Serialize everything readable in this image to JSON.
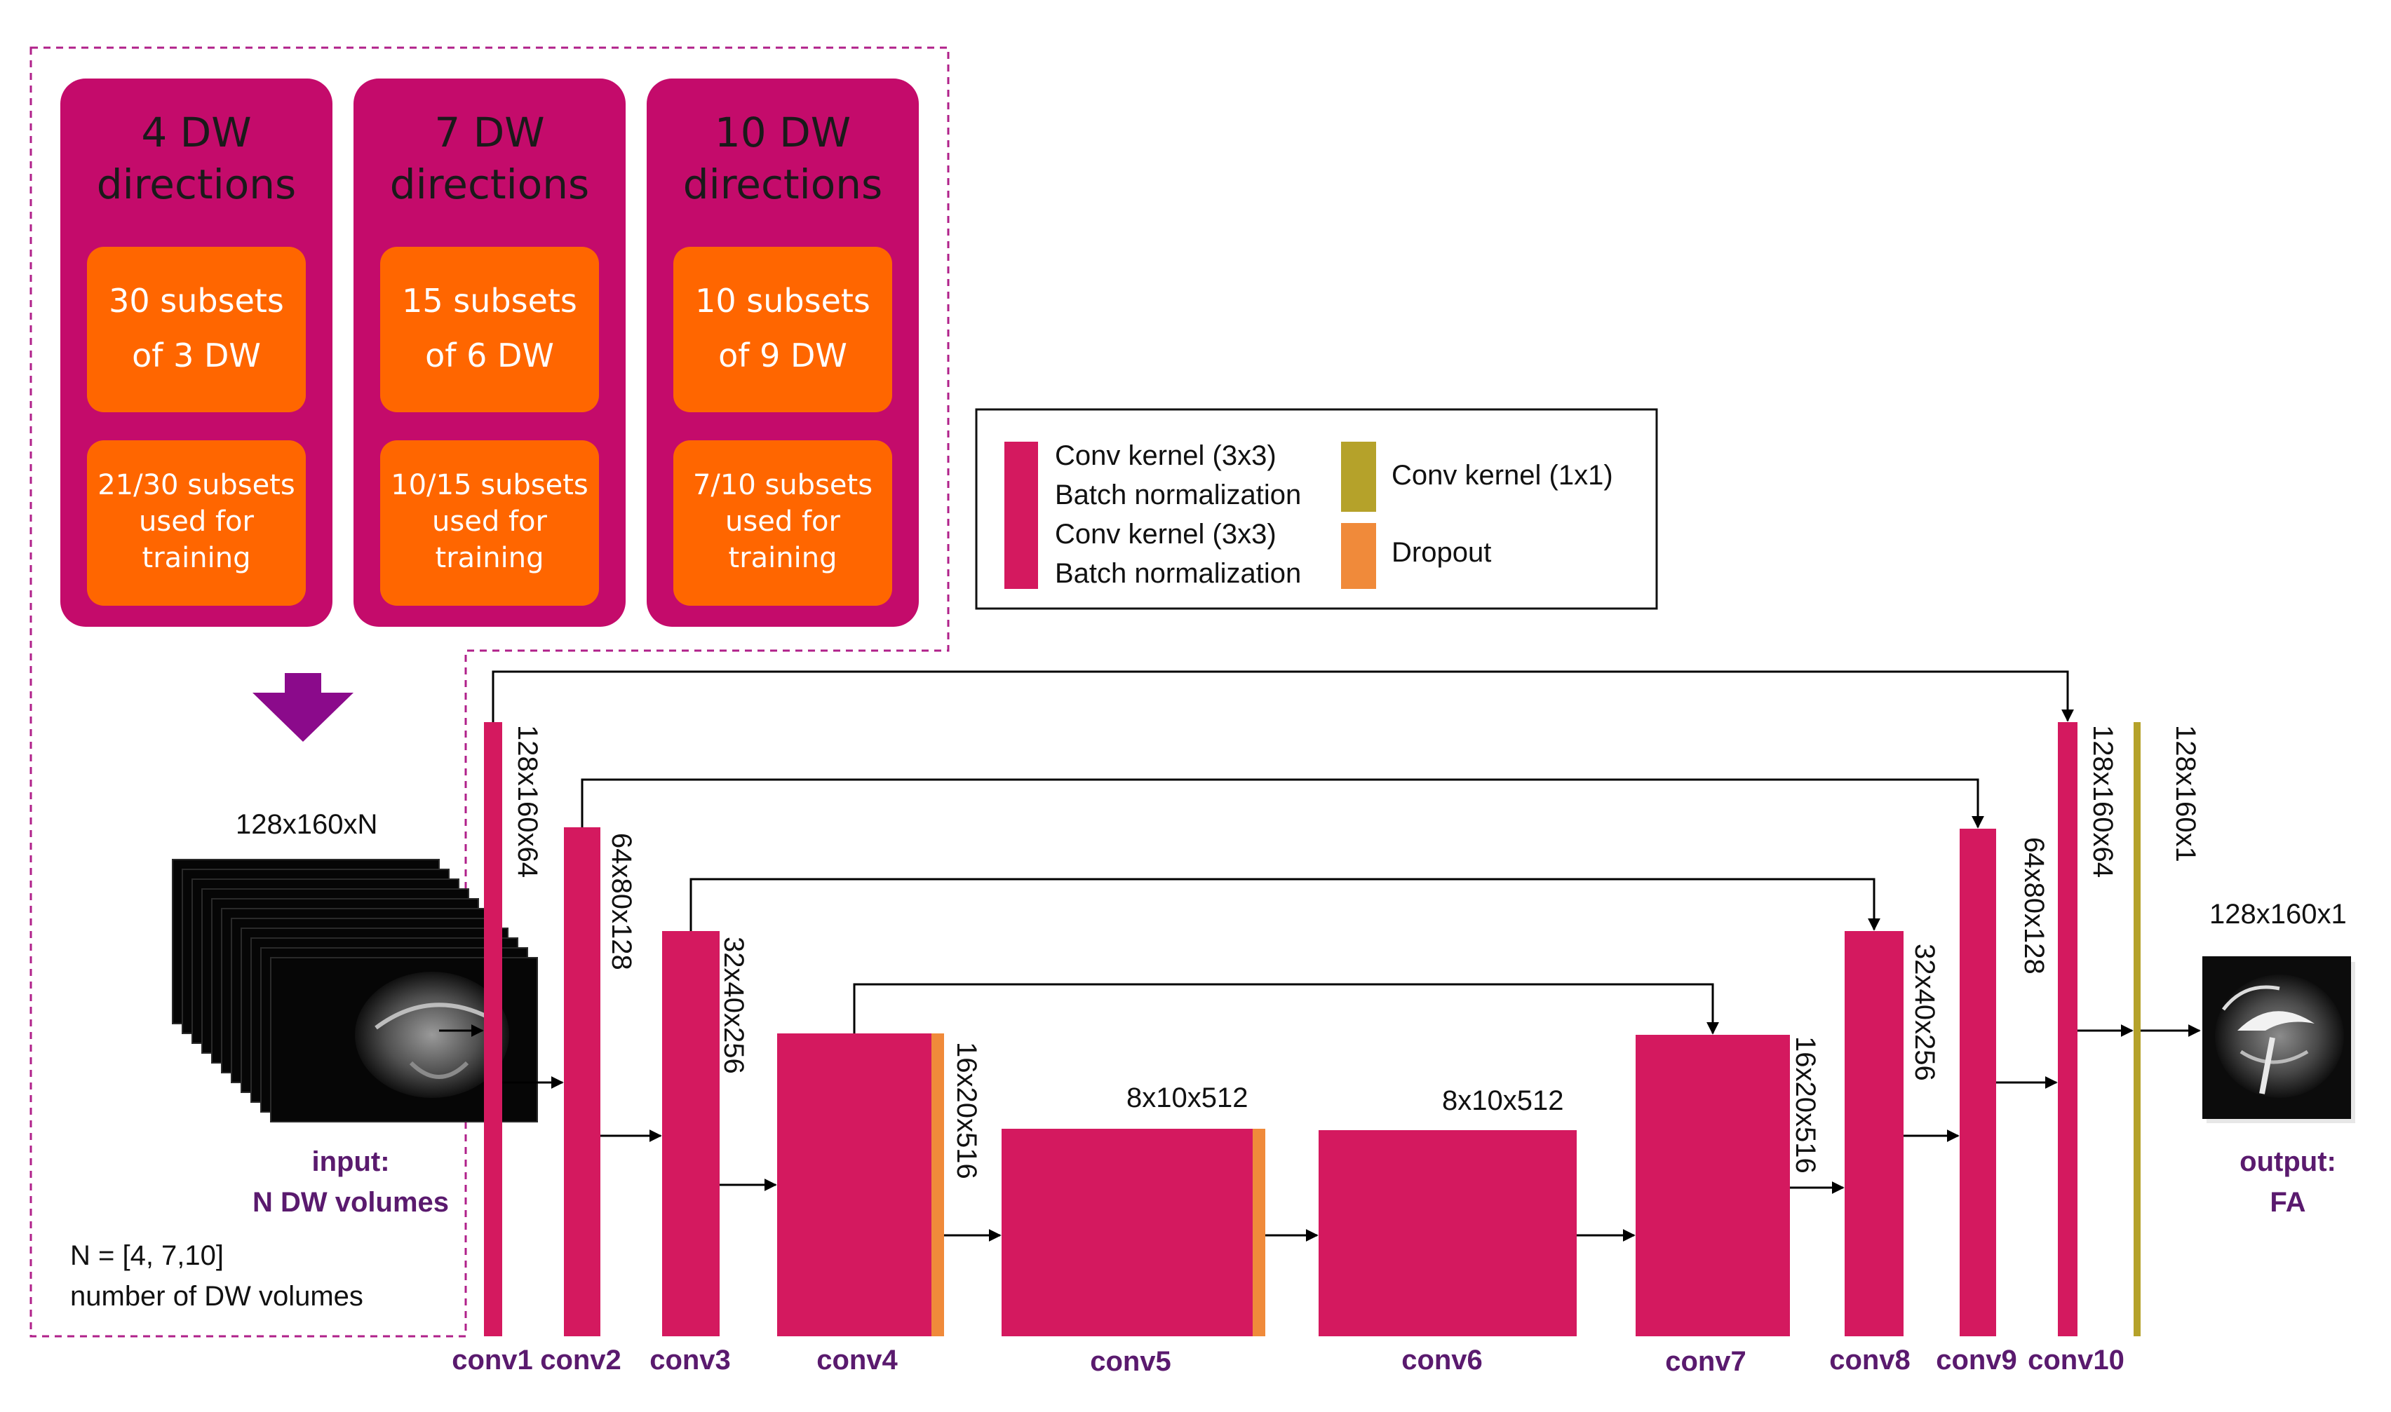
{
  "datasets": [
    {
      "title_line1": "4 DW",
      "title_line2": "directions",
      "subsets_line1": "30 subsets",
      "subsets_line2": "of 3 DW",
      "training_line1": "21/30 subsets",
      "training_line2": "used for",
      "training_line3": "training"
    },
    {
      "title_line1": "7 DW",
      "title_line2": "directions",
      "subsets_line1": "15 subsets",
      "subsets_line2": "of 6 DW",
      "training_line1": "10/15 subsets",
      "training_line2": "used for",
      "training_line3": "training"
    },
    {
      "title_line1": "10 DW",
      "title_line2": "directions",
      "subsets_line1": "10 subsets",
      "subsets_line2": "of 9 DW",
      "training_line1": "7/10 subsets",
      "training_line2": "used for",
      "training_line3": "training"
    }
  ],
  "legend": {
    "block_line1": "Conv kernel (3x3)",
    "block_line2": "Batch normalization",
    "block_line3": "Conv kernel (3x3)",
    "block_line4": "Batch normalization",
    "conv1x1": "Conv kernel (1x1)",
    "dropout": "Dropout"
  },
  "input": {
    "dims": "128x160xN",
    "label_line1": "input:",
    "label_line2": "N DW volumes",
    "n_note_line1": "N = [4, 7,10]",
    "n_note_line2": "number of DW volumes"
  },
  "output": {
    "dims": "128x160x1",
    "label_line1": "output:",
    "label_line2": "FA"
  },
  "layers": [
    {
      "name": "conv1",
      "dims": "128x160x64",
      "dropout": false
    },
    {
      "name": "conv2",
      "dims": "64x80x128",
      "dropout": false
    },
    {
      "name": "conv3",
      "dims": "32x40x256",
      "dropout": false
    },
    {
      "name": "conv4",
      "dims": "16x20x516",
      "dropout": true
    },
    {
      "name": "conv5",
      "dims": "8x10x512",
      "dropout": true
    },
    {
      "name": "conv6",
      "dims": "8x10x512",
      "dropout": false
    },
    {
      "name": "conv7",
      "dims": "16x20x516",
      "dropout": false
    },
    {
      "name": "conv8",
      "dims": "32x40x256",
      "dropout": false
    },
    {
      "name": "conv9",
      "dims": "64x80x128",
      "dropout": false
    },
    {
      "name": "conv10",
      "dims": "128x160x64",
      "dropout": false
    }
  ],
  "final_layer": {
    "dims": "128x160x1"
  },
  "colors": {
    "block": "#d4195f",
    "dataset_box": "#c40b6b",
    "subset_box": "#ff6600",
    "dropout": "#f08a3a",
    "conv1x1": "#b5a22a",
    "arrow_purple": "#8b0a8b",
    "label_purple": "#5a1a6e",
    "dashed_border": "#b0208a"
  },
  "icons": [
    "down-arrow-icon",
    "mri-input-stack-image",
    "fa-output-image"
  ]
}
